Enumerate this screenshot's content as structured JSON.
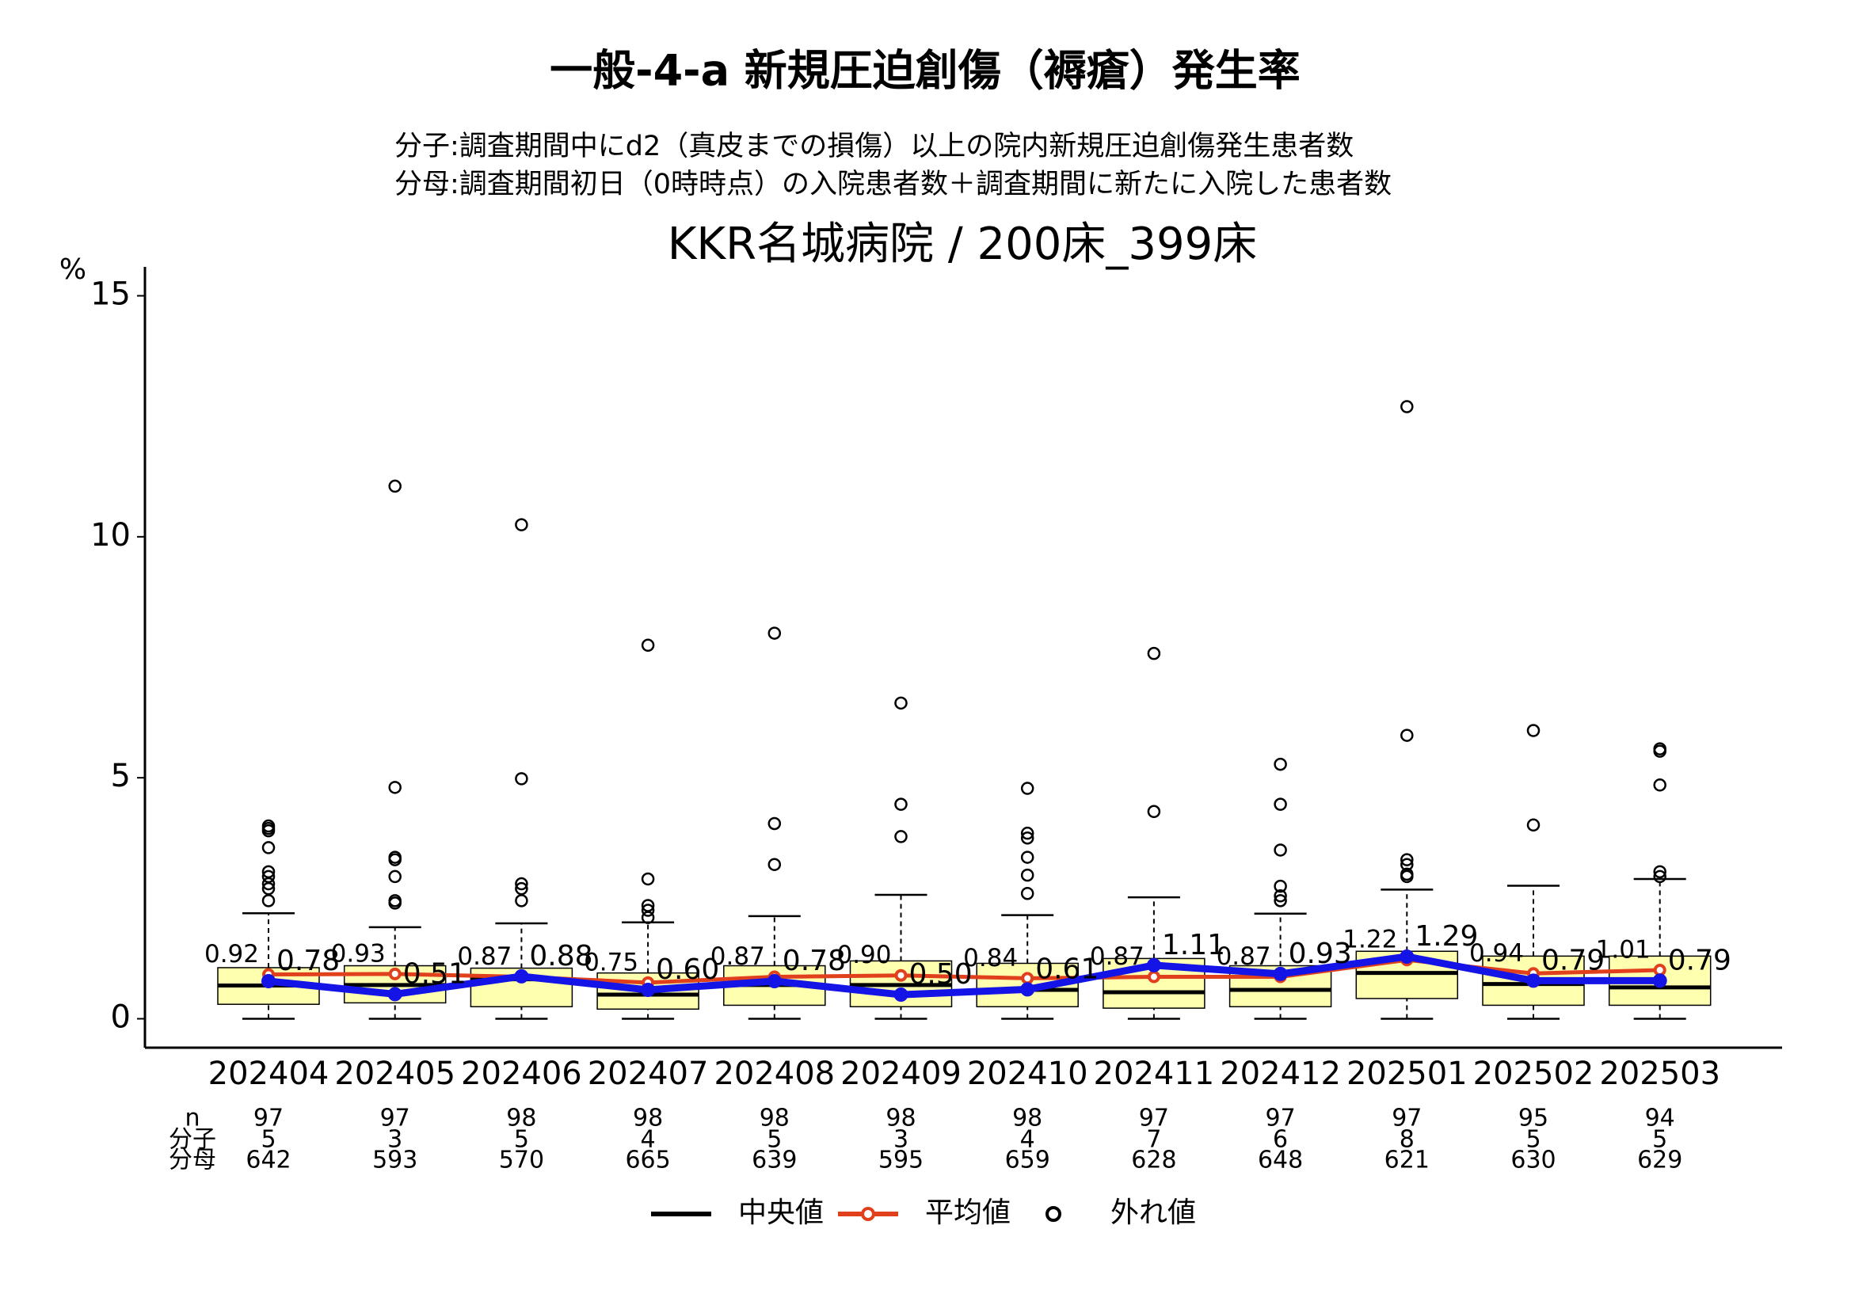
{
  "chart_data": {
    "type": "boxplot",
    "title": "一般-4-a 新規圧迫創傷（褥瘡）発生率",
    "subtitle_lines": [
      "分子:調査期間中にd2（真皮までの損傷）以上の院内新規圧迫創傷発生患者数",
      "分母:調査期間初日（0時時点）の入院患者数＋調査期間に新たに入院した患者数"
    ],
    "hospital_title": "KKR名城病院 / 200床_399床",
    "y_label": "%",
    "ylim": [
      -0.6,
      15.6
    ],
    "yticks": [
      0,
      5,
      10,
      15
    ],
    "categories": [
      "202404",
      "202405",
      "202406",
      "202407",
      "202408",
      "202409",
      "202410",
      "202411",
      "202412",
      "202501",
      "202502",
      "202503"
    ],
    "box_color": "#ffffb0",
    "median_name": "中央値",
    "outlier_name": "外れ値",
    "boxes": [
      {
        "whisker_low": 0,
        "q1": 0.3,
        "median": 0.69,
        "q3": 1.06,
        "whisker_high": 2.19,
        "outliers": [
          4.0,
          3.95,
          3.9,
          3.55,
          3.05,
          2.95,
          2.8,
          2.7,
          2.45
        ]
      },
      {
        "whisker_low": 0,
        "q1": 0.33,
        "median": 0.7,
        "q3": 1.1,
        "whisker_high": 1.9,
        "outliers": [
          11.05,
          4.8,
          3.35,
          3.3,
          2.95,
          2.45,
          2.4
        ]
      },
      {
        "whisker_low": 0,
        "q1": 0.25,
        "median": 0.82,
        "q3": 1.05,
        "whisker_high": 1.98,
        "outliers": [
          10.25,
          4.98,
          2.8,
          2.7,
          2.45
        ]
      },
      {
        "whisker_low": 0,
        "q1": 0.2,
        "median": 0.5,
        "q3": 0.95,
        "whisker_high": 2.0,
        "outliers": [
          7.75,
          2.9,
          2.35,
          2.25,
          2.1
        ]
      },
      {
        "whisker_low": 0,
        "q1": 0.28,
        "median": 0.7,
        "q3": 1.1,
        "whisker_high": 2.13,
        "outliers": [
          8.0,
          4.05,
          3.2
        ]
      },
      {
        "whisker_low": 0,
        "q1": 0.25,
        "median": 0.7,
        "q3": 1.2,
        "whisker_high": 2.57,
        "outliers": [
          6.55,
          4.45,
          3.78
        ]
      },
      {
        "whisker_low": 0,
        "q1": 0.25,
        "median": 0.6,
        "q3": 1.15,
        "whisker_high": 2.15,
        "outliers": [
          4.78,
          3.85,
          3.75,
          3.35,
          2.98,
          2.6
        ]
      },
      {
        "whisker_low": 0,
        "q1": 0.22,
        "median": 0.55,
        "q3": 1.25,
        "whisker_high": 2.52,
        "outliers": [
          7.58,
          4.3
        ]
      },
      {
        "whisker_low": 0,
        "q1": 0.25,
        "median": 0.6,
        "q3": 1.1,
        "whisker_high": 2.18,
        "outliers": [
          5.28,
          4.45,
          3.5,
          2.75,
          2.55,
          2.45
        ]
      },
      {
        "whisker_low": 0,
        "q1": 0.42,
        "median": 0.95,
        "q3": 1.4,
        "whisker_high": 2.68,
        "outliers": [
          12.7,
          5.88,
          3.3,
          3.2,
          3.0,
          2.95
        ]
      },
      {
        "whisker_low": 0,
        "q1": 0.28,
        "median": 0.72,
        "q3": 1.3,
        "whisker_high": 2.76,
        "outliers": [
          5.98,
          4.02
        ]
      },
      {
        "whisker_low": 0,
        "q1": 0.28,
        "median": 0.65,
        "q3": 1.3,
        "whisker_high": 2.9,
        "outliers": [
          5.6,
          5.55,
          4.85,
          3.05,
          2.95
        ]
      }
    ],
    "mean": {
      "name": "平均値",
      "color": "#e0401c",
      "values": [
        0.92,
        0.93,
        0.87,
        0.75,
        0.87,
        0.9,
        0.84,
        0.87,
        0.87,
        1.22,
        0.94,
        1.01
      ],
      "value_labels": [
        "0.92",
        "0.93",
        "0.87",
        "0.75",
        "0.87",
        "0.90",
        "0.84",
        "0.87",
        "0.87",
        "1.22",
        "0.94",
        "1.01"
      ]
    },
    "hospital": {
      "color": "#1414e6",
      "values": [
        0.78,
        0.51,
        0.88,
        0.6,
        0.78,
        0.5,
        0.61,
        1.11,
        0.93,
        1.29,
        0.79,
        0.79
      ],
      "value_labels": [
        "0.78",
        "0.51",
        "0.88",
        "0.60",
        "0.78",
        "0.50",
        "0.61",
        "1.11",
        "0.93",
        "1.29",
        "0.79",
        "0.79"
      ]
    },
    "table": {
      "color": "#2020d0",
      "row_labels": [
        "n",
        "分子",
        "分母"
      ],
      "rows": [
        [
          97,
          97,
          98,
          98,
          98,
          98,
          98,
          97,
          97,
          97,
          95,
          94
        ],
        [
          5,
          3,
          5,
          4,
          5,
          3,
          4,
          7,
          6,
          8,
          5,
          5
        ],
        [
          642,
          593,
          570,
          665,
          639,
          595,
          659,
          628,
          648,
          621,
          630,
          629
        ]
      ]
    }
  }
}
